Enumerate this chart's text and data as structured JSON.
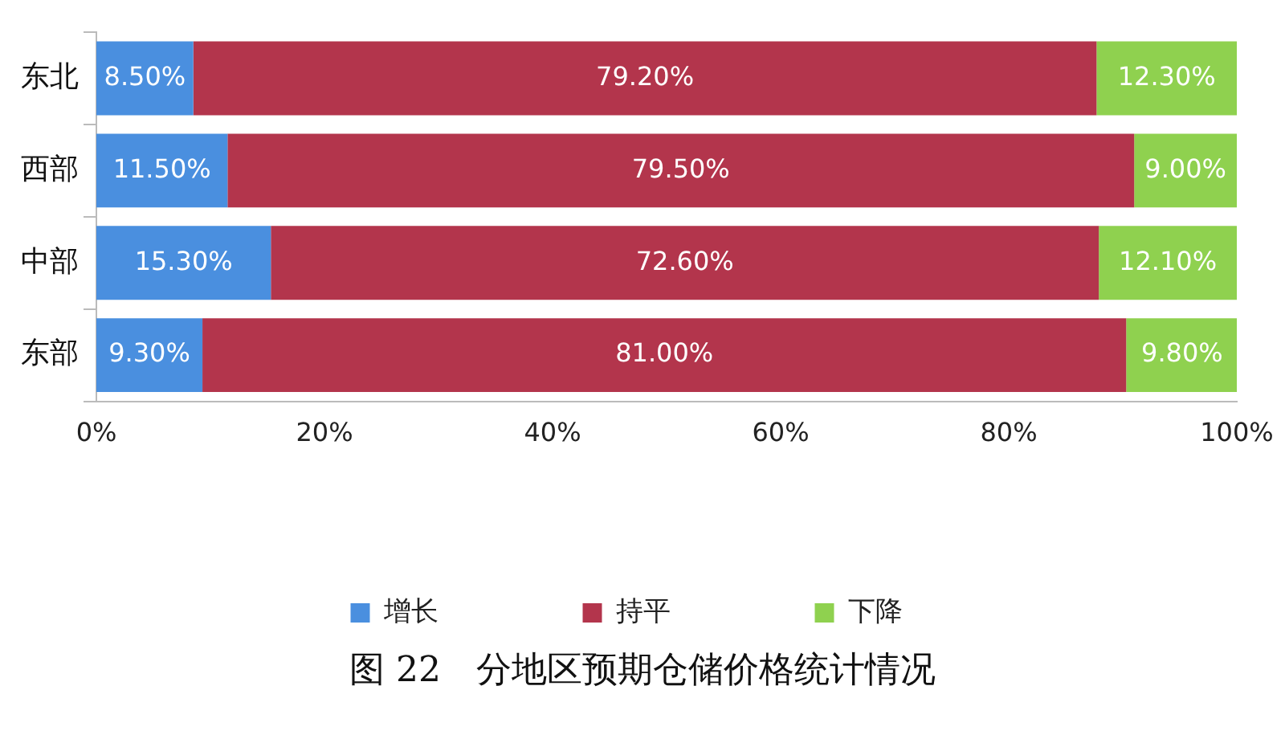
{
  "chart_data": {
    "type": "bar",
    "orientation": "horizontal",
    "stacked": true,
    "title": "图 22　分地区预期仓储价格统计情况",
    "categories": [
      "东北",
      "西部",
      "中部",
      "东部"
    ],
    "series": [
      {
        "name": "增长",
        "color": "#4a8fdf",
        "values": [
          8.5,
          11.5,
          15.3,
          9.3
        ],
        "value_labels": [
          "8.50%",
          "11.50%",
          "15.30%",
          "9.30%"
        ]
      },
      {
        "name": "持平",
        "color": "#b3354c",
        "values": [
          79.2,
          79.5,
          72.6,
          81.0
        ],
        "value_labels": [
          "79.20%",
          "79.50%",
          "72.60%",
          "81.00%"
        ]
      },
      {
        "name": "下降",
        "color": "#8fd14f",
        "values": [
          12.3,
          9.0,
          12.1,
          9.8
        ],
        "value_labels": [
          "12.30%",
          "9.00%",
          "12.10%",
          "9.80%"
        ]
      }
    ],
    "xlim": [
      0,
      100
    ],
    "xticks": [
      {
        "value": 0,
        "label": "0%"
      },
      {
        "value": 20,
        "label": "20%"
      },
      {
        "value": 40,
        "label": "40%"
      },
      {
        "value": 60,
        "label": "60%"
      },
      {
        "value": 80,
        "label": "80%"
      },
      {
        "value": 100,
        "label": "100%"
      }
    ],
    "grid": false,
    "legend": "bottom"
  }
}
